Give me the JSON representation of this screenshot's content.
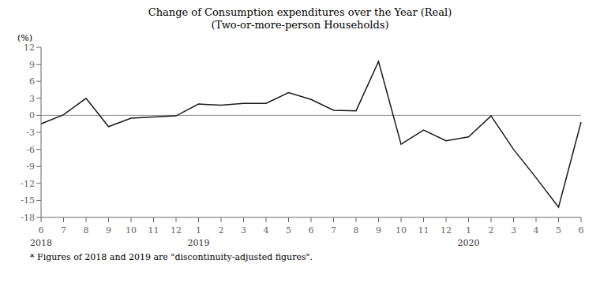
{
  "chart_data": {
    "type": "line",
    "title": "Change of Consumption  expenditures over the Year (Real)",
    "subtitle": "(Two-or-more-person Households)",
    "y_label": "(%)",
    "footnote": "*   Figures of 2018 and 2019 are \"discontinuity-adjusted figures\".",
    "categories": [
      "6",
      "7",
      "8",
      "9",
      "10",
      "11",
      "12",
      "1",
      "2",
      "3",
      "4",
      "5",
      "6",
      "7",
      "8",
      "9",
      "10",
      "11",
      "12",
      "1",
      "2",
      "3",
      "4",
      "5",
      "6"
    ],
    "values": [
      -1.5,
      0.1,
      3.0,
      -2.0,
      -0.5,
      -0.3,
      -0.1,
      2.0,
      1.8,
      2.1,
      2.1,
      4.0,
      2.8,
      0.9,
      0.8,
      9.5,
      -5.1,
      -2.6,
      -4.5,
      -3.8,
      -0.1,
      -6.0,
      -11.0,
      -16.2,
      -1.2
    ],
    "annotations": [
      {
        "text": "2018",
        "x": 0
      },
      {
        "text": "2019",
        "x": 7
      },
      {
        "text": "2020",
        "x": 19
      }
    ],
    "reference_lines": [
      0
    ],
    "color": "#1a1a1a",
    "ylim": [
      -18,
      12
    ],
    "yticks": [
      -18,
      -15,
      -12,
      -9,
      -6,
      -3,
      0,
      3,
      6,
      9,
      12
    ],
    "grid": false
  }
}
